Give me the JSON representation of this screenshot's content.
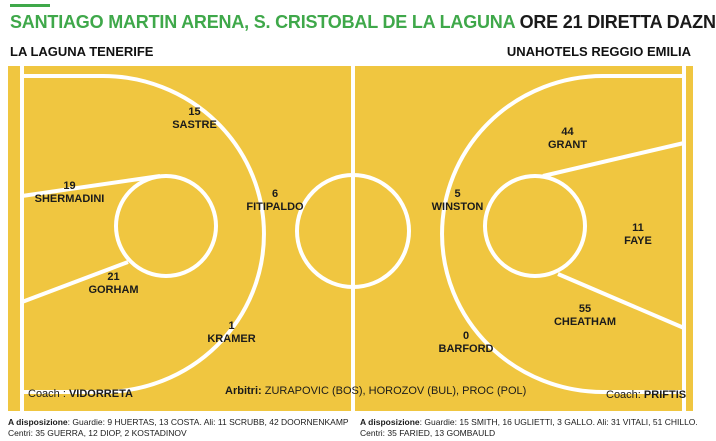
{
  "header": {
    "venue": "SANTIAGO MARTIN ARENA, S. CRISTOBAL DE LA LAGUNA",
    "time": "ORE 21 DIRETTA DAZN"
  },
  "teams": {
    "home": "LA LAGUNA TENERIFE",
    "away": "UNAHOTELS REGGIO EMILIA"
  },
  "home_players": [
    {
      "number": "15",
      "name": "SASTRE"
    },
    {
      "number": "19",
      "name": "SHERMADINI"
    },
    {
      "number": "6",
      "name": "FITIPALDO"
    },
    {
      "number": "21",
      "name": "GORHAM"
    },
    {
      "number": "1",
      "name": "KRAMER"
    }
  ],
  "away_players": [
    {
      "number": "44",
      "name": "GRANT"
    },
    {
      "number": "5",
      "name": "WINSTON"
    },
    {
      "number": "11",
      "name": "FAYE"
    },
    {
      "number": "55",
      "name": "CHEATHAM"
    },
    {
      "number": "0",
      "name": "BARFORD"
    }
  ],
  "coaches": {
    "home_label": "Coach : ",
    "home": "VIDORRETA",
    "away_label": "Coach: ",
    "away": "PRIFTIS"
  },
  "referees": {
    "label": "Arbitri: ",
    "names": "ZURAPOVIC (BOS), HOROZOV (BUL), PROC (POL)"
  },
  "bench": {
    "label": "A disposizione",
    "home_line1": ": Guardie: 9 HUERTAS, 13 COSTA. Ali: 11 SCRUBB, 42 DOORNENKAMP",
    "home_line2": "Centri: 35 GUERRA, 12 DIOP, 2 KOSTADINOV",
    "away_line1": ": Guardie: 15 SMITH, 16 UGLIETTI, 3 GALLO. Ali: 31 VITALI, 51 CHILLO.",
    "away_line2": "Centri: 35 FARIED, 13 GOMBAULD"
  },
  "colors": {
    "court": "#f0c640",
    "lines": "#ffffff",
    "accent": "#3fa84a"
  }
}
